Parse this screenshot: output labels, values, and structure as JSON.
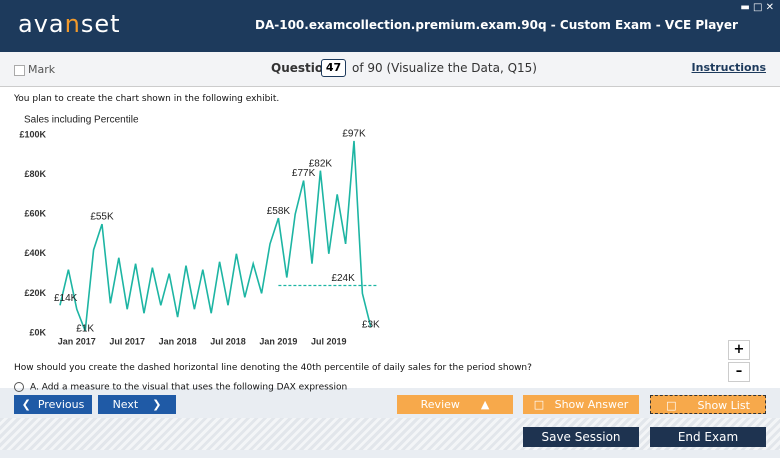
{
  "header": {
    "logo": [
      "ava",
      "n",
      "set"
    ],
    "title": "DA-100.examcollection.premium.exam.90q - Custom Exam - VCE Player"
  },
  "toolbar": {
    "mark": "Mark",
    "question_label": "Question",
    "question_number": "47",
    "question_of": "of 90 (Visualize the Data, Q15)",
    "instructions": "Instructions"
  },
  "question": {
    "text": "You plan to create the chart shown in the following exhibit.",
    "prompt": "How should you create the dashed horizontal line denoting the 40th percentile of daily sales for the period shown?",
    "option_a": "A.  Add a measure to the visual that uses the following DAX expression"
  },
  "chart_data": {
    "type": "line",
    "title": "Sales including Percentile",
    "color": "#1db5a3",
    "categories": [
      null,
      null,
      "Jan 2017",
      null,
      null,
      null,
      null,
      null,
      "Jul 2017",
      null,
      null,
      null,
      null,
      null,
      "Jan 2018",
      null,
      null,
      null,
      null,
      null,
      "Jul 2018",
      null,
      null,
      null,
      null,
      null,
      "Jan 2019",
      null,
      null,
      null,
      null,
      null,
      "Jul 2019",
      null,
      null,
      null,
      null,
      null
    ],
    "values": [
      14000,
      32000,
      12000,
      1000,
      42000,
      55000,
      15000,
      38000,
      12000,
      35000,
      10000,
      33000,
      14000,
      30000,
      8000,
      34000,
      12000,
      32000,
      10000,
      36000,
      14000,
      40000,
      18000,
      35000,
      20000,
      45000,
      58000,
      28000,
      60000,
      77000,
      35000,
      82000,
      40000,
      70000,
      45000,
      97000,
      20000,
      3000
    ],
    "value_labels": [
      "£14K",
      null,
      null,
      "£1K",
      null,
      "£55K",
      null,
      null,
      null,
      null,
      null,
      null,
      null,
      null,
      null,
      null,
      null,
      null,
      null,
      null,
      null,
      null,
      null,
      null,
      null,
      null,
      "£58K",
      null,
      null,
      "£77K",
      null,
      "£82K",
      null,
      null,
      null,
      "£97K",
      null,
      "£3K"
    ],
    "reference_line": {
      "value": 24000,
      "label": "£24K",
      "style": "dashed"
    },
    "ylim": [
      0,
      100000
    ],
    "yticks": [
      {
        "value": 0,
        "label": "£0K"
      },
      {
        "value": 20000,
        "label": "£20K"
      },
      {
        "value": 40000,
        "label": "£40K"
      },
      {
        "value": 60000,
        "label": "£60K"
      },
      {
        "value": 80000,
        "label": "£80K"
      },
      {
        "value": 100000,
        "label": "£100K"
      }
    ],
    "grid": false
  },
  "buttons": {
    "previous": "Previous",
    "next": "Next",
    "review": "Review",
    "show_answer": "Show Answer",
    "show_list": "Show List",
    "save_session": "Save Session",
    "end_exam": "End Exam"
  }
}
